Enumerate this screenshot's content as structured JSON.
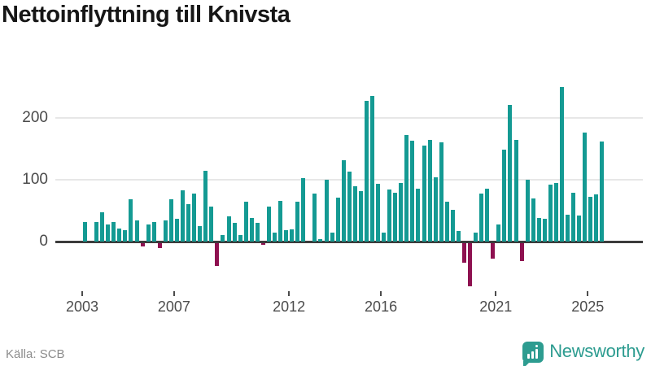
{
  "title": "Nettoinflyttning till Knivsta",
  "footer": {
    "source": "Källa: SCB",
    "brand": "Newsworthy"
  },
  "colors": {
    "positive_bar": "#149a93",
    "negative_bar": "#8e1150",
    "axis": "#3c3c3c",
    "grid": "#e7e7e7",
    "tick_label": "#4c4c4c",
    "title_text": "#161616",
    "source_text": "#8c8c8c",
    "brand_teal": "#2d9c90"
  },
  "chart_data": {
    "type": "bar",
    "title": "Nettoinflyttning till Knivsta",
    "x_unit": "quarter",
    "start": "2003-Q1",
    "end": "2025-Q3",
    "xlabel": "",
    "ylabel": "",
    "grid": true,
    "ylim": [
      -80,
      265
    ],
    "y_ticks": [
      0,
      100,
      200
    ],
    "x_tick_years": [
      2003,
      2007,
      2012,
      2016,
      2021,
      2025
    ],
    "series": [
      {
        "name": "Nettoinflyttning till Knivsta (per kvartal)",
        "values": [
          32,
          0,
          32,
          47,
          28,
          31,
          21,
          18,
          69,
          34,
          -6,
          28,
          32,
          -8,
          34,
          69,
          37,
          83,
          60,
          78,
          25,
          114,
          56,
          -38,
          10,
          41,
          30,
          11,
          65,
          38,
          30,
          -3,
          57,
          15,
          66,
          18,
          20,
          64,
          103,
          0,
          78,
          4,
          100,
          14,
          71,
          131,
          113,
          90,
          82,
          227,
          235,
          94,
          15,
          84,
          79,
          95,
          172,
          163,
          86,
          155,
          165,
          104,
          160,
          64,
          51,
          17,
          -32,
          -70,
          15,
          78,
          85,
          -25,
          27,
          149,
          221,
          165,
          -29,
          100,
          70,
          38,
          37,
          92,
          95,
          250,
          44,
          79,
          42,
          176,
          73,
          76,
          162
        ]
      }
    ]
  }
}
